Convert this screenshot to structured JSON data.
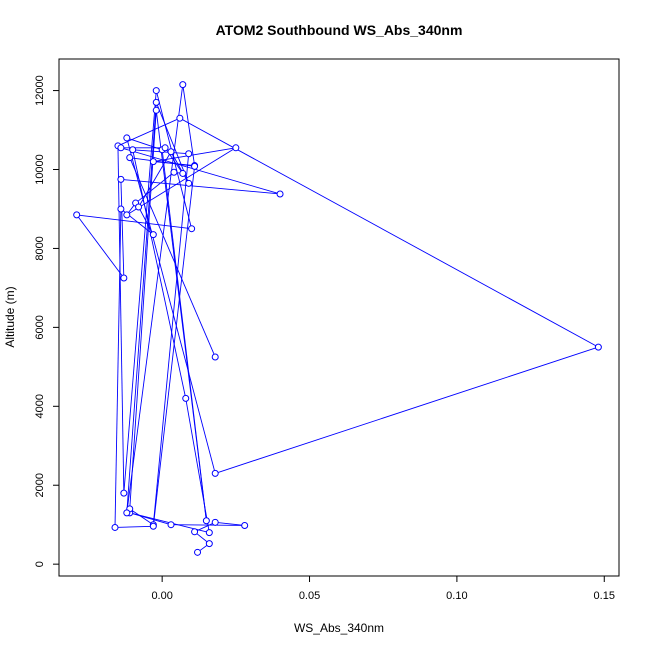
{
  "chart_data": {
    "type": "line",
    "title": "ATOM2 Southbound WS_Abs_340nm",
    "xlabel": "WS_Abs_340nm",
    "ylabel": "Altitude (m)",
    "xlim": [
      -0.035,
      0.155
    ],
    "ylim": [
      -300,
      12800
    ],
    "xticks": [
      0.0,
      0.05,
      0.1,
      0.15
    ],
    "xtick_labels": [
      "0.00",
      "0.05",
      "0.10",
      "0.15"
    ],
    "yticks": [
      0,
      2000,
      4000,
      6000,
      8000,
      10000,
      12000
    ],
    "ytick_labels": [
      "0",
      "2000",
      "4000",
      "6000",
      "8000",
      "10000",
      "12000"
    ],
    "grid": false,
    "series_color": "#0000ff",
    "series": [
      {
        "x": [
          0.012,
          0.016,
          0.011,
          0.018,
          0.028,
          0.003,
          -0.011,
          0.016,
          0.008,
          -0.01,
          0.009,
          -0.003,
          -0.011,
          -0.002,
          0.015,
          0.0,
          -0.012,
          0.018,
          0.148,
          0.006,
          -0.015,
          -0.013,
          -0.002,
          0.01,
          -0.029,
          -0.013,
          -0.014,
          0.04,
          -0.014,
          0.001,
          0.007,
          0.004,
          -0.009,
          -0.012,
          0.025,
          -0.003,
          0.011,
          0.007,
          -0.012,
          -0.002,
          0.009,
          0.003,
          -0.008,
          -0.003,
          -0.014,
          -0.016,
          -0.003,
          0.011,
          -0.011,
          0.018
        ],
        "y": [
          300,
          520,
          820,
          1060,
          980,
          1000,
          1300,
          800,
          4200,
          10500,
          10400,
          1000,
          1400,
          11500,
          1100,
          10500,
          10800,
          2300,
          5500,
          11300,
          10600,
          1800,
          12000,
          8500,
          8850,
          7250,
          9750,
          9380,
          10550,
          10550,
          9900,
          9930,
          9150,
          8850,
          10550,
          10200,
          10100,
          12150,
          1300,
          11700,
          9650,
          10450,
          9050,
          8350,
          9000,
          930,
          960,
          10080,
          10300,
          5250
        ]
      }
    ]
  }
}
